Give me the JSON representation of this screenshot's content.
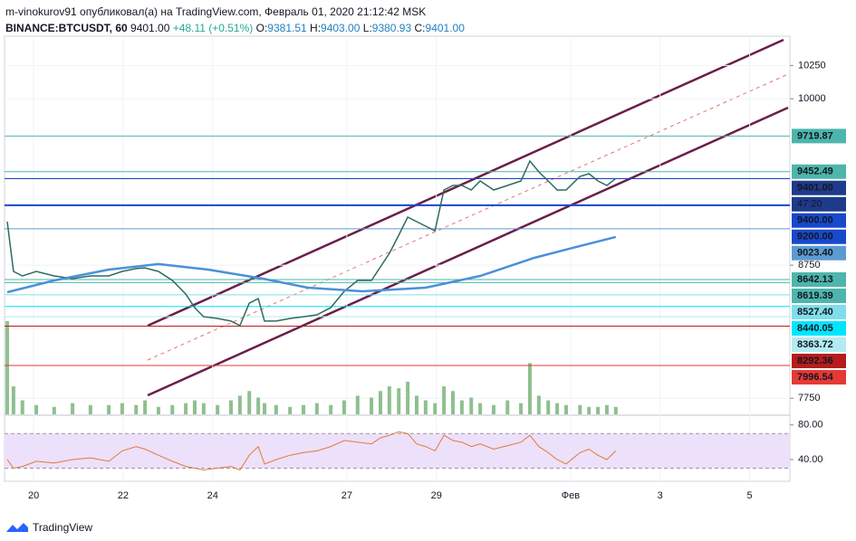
{
  "header": {
    "author_line": "m-vinokurov91 опубликовал(а) на TradingView.com, Февраль 01, 2020 21:12:42 MSK",
    "symbol": "BINANCE:BTCUSDT, 60",
    "last": "9401.00",
    "change": "+48.11 (+0.51%)",
    "ohlc": [
      {
        "label": "O:",
        "value": "9381.51"
      },
      {
        "label": "H:",
        "value": "9403.00"
      },
      {
        "label": "L:",
        "value": "9380.93"
      },
      {
        "label": "C:",
        "value": "9401.00"
      }
    ]
  },
  "chart_data": {
    "type": "line",
    "xlim": [
      19.35,
      36.9
    ],
    "xticks": [
      20,
      22,
      24,
      27,
      29,
      {
        "value": 32,
        "label": "Фев"
      },
      {
        "value": 34,
        "label": "3"
      },
      {
        "value": 36,
        "label": "5"
      }
    ],
    "ylim": [
      7650,
      10470
    ],
    "yticks": [
      7750,
      8750,
      10000,
      10250
    ],
    "grid": true,
    "series": [
      {
        "color": "#2f6b5e",
        "x": [
          19.41,
          19.55,
          19.75,
          20.06,
          20.46,
          20.87,
          21.27,
          21.68,
          21.98,
          22.29,
          22.49,
          22.79,
          23.1,
          23.4,
          23.6,
          23.8,
          24.11,
          24.41,
          24.61,
          24.82,
          25.02,
          25.16,
          25.42,
          25.73,
          26.03,
          26.33,
          26.64,
          26.94,
          27.24,
          27.55,
          27.75,
          27.95,
          28.16,
          28.36,
          28.56,
          28.76,
          28.97,
          29.17,
          29.37,
          29.57,
          29.78,
          29.98,
          30.28,
          30.59,
          30.89,
          31.09,
          31.29,
          31.5,
          31.7,
          31.9,
          32.21,
          32.41,
          32.61,
          32.81,
          33.01
        ],
        "values": [
          9077,
          8703,
          8669,
          8703,
          8669,
          8649,
          8669,
          8669,
          8703,
          8724,
          8730,
          8703,
          8635,
          8533,
          8431,
          8363,
          8350,
          8330,
          8296,
          8465,
          8499,
          8330,
          8330,
          8350,
          8363,
          8377,
          8431,
          8554,
          8635,
          8635,
          8737,
          8839,
          8975,
          9111,
          9077,
          9043,
          9009,
          9315,
          9349,
          9349,
          9315,
          9383,
          9315,
          9349,
          9383,
          9532,
          9451,
          9383,
          9315,
          9315,
          9417,
          9437,
          9383,
          9349,
          9401
        ]
      },
      {
        "color": "#4a90d9",
        "x": [
          19.41,
          20.46,
          21.68,
          22.79,
          23.9,
          25.12,
          26.13,
          27.35,
          28.76,
          29.98,
          31.19,
          32.21,
          33.01
        ],
        "values": [
          8547,
          8635,
          8717,
          8758,
          8717,
          8649,
          8581,
          8554,
          8581,
          8669,
          8805,
          8894,
          8962
        ]
      }
    ],
    "volume": {
      "color": "#8fbf8f",
      "values": [
        100,
        30,
        15,
        10,
        8,
        12,
        10,
        10,
        12,
        10,
        15,
        8,
        10,
        12,
        15,
        12,
        10,
        15,
        20,
        25,
        18,
        12,
        10,
        8,
        10,
        12,
        10,
        15,
        20,
        18,
        25,
        30,
        28,
        35,
        20,
        15,
        12,
        30,
        25,
        15,
        18,
        12,
        10,
        15,
        12,
        55,
        20,
        15,
        12,
        10,
        10,
        8,
        8,
        10,
        8
      ]
    },
    "levels": [
      {
        "value": 9719.87,
        "label": "9719.87",
        "color": "#4db6ac",
        "text_color": "#000000"
      },
      {
        "value": 9452.49,
        "label": "9452.49",
        "color": "#4db6ac",
        "text_color": "#000000"
      },
      {
        "value": 9401,
        "label": "9401.00",
        "color": "#1e3a8a",
        "text_color": "#ffffff"
      },
      {
        "value": 9400,
        "label": "9400.00",
        "color": "#1848cc",
        "text_color": "#ffffff"
      },
      {
        "value": 9200,
        "label": "9200.00",
        "color": "#1848cc",
        "text_color": "#ffffff"
      },
      {
        "value": 9023.4,
        "label": "9023.40",
        "color": "#5c9bd1",
        "text_color": "#000000"
      },
      {
        "value": 8642.13,
        "label": "8642.13",
        "color": "#4db6ac",
        "text_color": "#000000"
      },
      {
        "value": 8619.39,
        "label": "8619.39",
        "color": "#4db6ac",
        "text_color": "#000000"
      },
      {
        "value": 8527.4,
        "label": "8527.40",
        "color": "#80deea",
        "text_color": "#000000"
      },
      {
        "value": 8440.05,
        "label": "8440.05",
        "color": "#00e5ff",
        "text_color": "#000000"
      },
      {
        "value": 8363.72,
        "label": "8363.72",
        "color": "#b2ebf2",
        "text_color": "#000000"
      },
      {
        "value": 8292.36,
        "label": "8292.36",
        "color": "#b71c1c",
        "text_color": "#ffffff"
      },
      {
        "value": 7996.54,
        "label": "7996.54",
        "color": "#e53935",
        "text_color": "#ffffff"
      }
    ],
    "countdown": "47:20",
    "rsi": {
      "color": "#e07b39",
      "band": [
        30,
        70
      ],
      "band_color": "#ede0fa",
      "ylim": [
        17,
        88
      ],
      "yticks": [
        {
          "value": 80,
          "label": "80.00"
        },
        {
          "value": 40,
          "label": "40.00"
        }
      ],
      "values": [
        40,
        30,
        32,
        38,
        36,
        40,
        42,
        38,
        50,
        55,
        52,
        45,
        38,
        32,
        30,
        28,
        30,
        32,
        28,
        45,
        55,
        35,
        40,
        45,
        48,
        50,
        55,
        62,
        60,
        58,
        65,
        68,
        72,
        70,
        58,
        55,
        50,
        68,
        62,
        60,
        55,
        58,
        52,
        56,
        60,
        68,
        55,
        48,
        40,
        35,
        48,
        52,
        45,
        40,
        50
      ]
    }
  },
  "footer": {
    "brand": "TradingView"
  }
}
